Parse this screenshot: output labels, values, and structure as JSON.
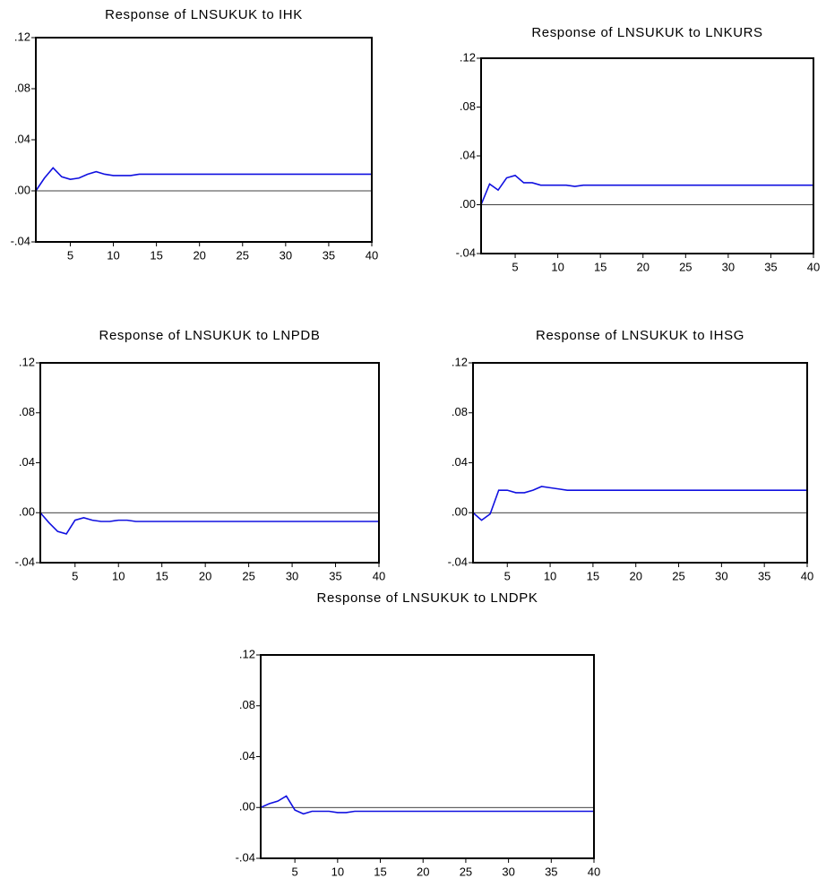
{
  "chart_data": [
    {
      "type": "line",
      "title": "Response of LNSUKUK to IHK",
      "color": "#1010e0",
      "zero_line": true,
      "x": [
        1,
        2,
        3,
        4,
        5,
        6,
        7,
        8,
        9,
        10,
        11,
        12,
        13,
        14,
        15,
        16,
        17,
        18,
        19,
        20,
        21,
        22,
        23,
        24,
        25,
        26,
        27,
        28,
        29,
        30,
        31,
        32,
        33,
        34,
        35,
        36,
        37,
        38,
        39,
        40
      ],
      "values": [
        0,
        0.01,
        0.018,
        0.011,
        0.009,
        0.01,
        0.013,
        0.015,
        0.013,
        0.012,
        0.012,
        0.012,
        0.013,
        0.013,
        0.013,
        0.013,
        0.013,
        0.013,
        0.013,
        0.013,
        0.013,
        0.013,
        0.013,
        0.013,
        0.013,
        0.013,
        0.013,
        0.013,
        0.013,
        0.013,
        0.013,
        0.013,
        0.013,
        0.013,
        0.013,
        0.013,
        0.013,
        0.013,
        0.013,
        0.013
      ],
      "xlim": [
        1,
        40
      ],
      "xticks": [
        5,
        10,
        15,
        20,
        25,
        30,
        35,
        40
      ],
      "ylim": [
        -0.04,
        0.12
      ],
      "yticks": [
        {
          "value": -0.04,
          "label": "-.04"
        },
        {
          "value": 0,
          "label": ".00"
        },
        {
          "value": 0.04,
          "label": ".04"
        },
        {
          "value": 0.08,
          "label": ".08"
        },
        {
          "value": 0.12,
          "label": ".12"
        }
      ]
    },
    {
      "type": "line",
      "title": "Response of LNSUKUK to LNKURS",
      "color": "#1010e0",
      "zero_line": true,
      "x": [
        1,
        2,
        3,
        4,
        5,
        6,
        7,
        8,
        9,
        10,
        11,
        12,
        13,
        14,
        15,
        16,
        17,
        18,
        19,
        20,
        21,
        22,
        23,
        24,
        25,
        26,
        27,
        28,
        29,
        30,
        31,
        32,
        33,
        34,
        35,
        36,
        37,
        38,
        39,
        40
      ],
      "values": [
        0,
        0.017,
        0.012,
        0.022,
        0.024,
        0.018,
        0.018,
        0.016,
        0.016,
        0.016,
        0.016,
        0.015,
        0.016,
        0.016,
        0.016,
        0.016,
        0.016,
        0.016,
        0.016,
        0.016,
        0.016,
        0.016,
        0.016,
        0.016,
        0.016,
        0.016,
        0.016,
        0.016,
        0.016,
        0.016,
        0.016,
        0.016,
        0.016,
        0.016,
        0.016,
        0.016,
        0.016,
        0.016,
        0.016,
        0.016
      ],
      "xlim": [
        1,
        40
      ],
      "xticks": [
        5,
        10,
        15,
        20,
        25,
        30,
        35,
        40
      ],
      "ylim": [
        -0.04,
        0.12
      ],
      "yticks": [
        {
          "value": -0.04,
          "label": "-.04"
        },
        {
          "value": 0,
          "label": ".00"
        },
        {
          "value": 0.04,
          "label": ".04"
        },
        {
          "value": 0.08,
          "label": ".08"
        },
        {
          "value": 0.12,
          "label": ".12"
        }
      ]
    },
    {
      "type": "line",
      "title": "Response of LNSUKUK to LNPDB",
      "color": "#1010e0",
      "zero_line": true,
      "x": [
        1,
        2,
        3,
        4,
        5,
        6,
        7,
        8,
        9,
        10,
        11,
        12,
        13,
        14,
        15,
        16,
        17,
        18,
        19,
        20,
        21,
        22,
        23,
        24,
        25,
        26,
        27,
        28,
        29,
        30,
        31,
        32,
        33,
        34,
        35,
        36,
        37,
        38,
        39,
        40
      ],
      "values": [
        0,
        -0.008,
        -0.015,
        -0.017,
        -0.006,
        -0.004,
        -0.006,
        -0.007,
        -0.007,
        -0.006,
        -0.006,
        -0.007,
        -0.007,
        -0.007,
        -0.007,
        -0.007,
        -0.007,
        -0.007,
        -0.007,
        -0.007,
        -0.007,
        -0.007,
        -0.007,
        -0.007,
        -0.007,
        -0.007,
        -0.007,
        -0.007,
        -0.007,
        -0.007,
        -0.007,
        -0.007,
        -0.007,
        -0.007,
        -0.007,
        -0.007,
        -0.007,
        -0.007,
        -0.007,
        -0.007
      ],
      "xlim": [
        1,
        40
      ],
      "xticks": [
        5,
        10,
        15,
        20,
        25,
        30,
        35,
        40
      ],
      "ylim": [
        -0.04,
        0.12
      ],
      "yticks": [
        {
          "value": -0.04,
          "label": "-.04"
        },
        {
          "value": 0,
          "label": ".00"
        },
        {
          "value": 0.04,
          "label": ".04"
        },
        {
          "value": 0.08,
          "label": ".08"
        },
        {
          "value": 0.12,
          "label": ".12"
        }
      ]
    },
    {
      "type": "line",
      "title": "Response of LNSUKUK to IHSG",
      "color": "#1010e0",
      "zero_line": true,
      "x": [
        1,
        2,
        3,
        4,
        5,
        6,
        7,
        8,
        9,
        10,
        11,
        12,
        13,
        14,
        15,
        16,
        17,
        18,
        19,
        20,
        21,
        22,
        23,
        24,
        25,
        26,
        27,
        28,
        29,
        30,
        31,
        32,
        33,
        34,
        35,
        36,
        37,
        38,
        39,
        40
      ],
      "values": [
        0,
        -0.006,
        -0.001,
        0.018,
        0.018,
        0.016,
        0.016,
        0.018,
        0.021,
        0.02,
        0.019,
        0.018,
        0.018,
        0.018,
        0.018,
        0.018,
        0.018,
        0.018,
        0.018,
        0.018,
        0.018,
        0.018,
        0.018,
        0.018,
        0.018,
        0.018,
        0.018,
        0.018,
        0.018,
        0.018,
        0.018,
        0.018,
        0.018,
        0.018,
        0.018,
        0.018,
        0.018,
        0.018,
        0.018,
        0.018
      ],
      "xlim": [
        1,
        40
      ],
      "xticks": [
        5,
        10,
        15,
        20,
        25,
        30,
        35,
        40
      ],
      "ylim": [
        -0.04,
        0.12
      ],
      "yticks": [
        {
          "value": -0.04,
          "label": "-.04"
        },
        {
          "value": 0,
          "label": ".00"
        },
        {
          "value": 0.04,
          "label": ".04"
        },
        {
          "value": 0.08,
          "label": ".08"
        },
        {
          "value": 0.12,
          "label": ".12"
        }
      ]
    },
    {
      "type": "line",
      "title": "Response of LNSUKUK to LNDPK",
      "color": "#1010e0",
      "zero_line": true,
      "x": [
        1,
        2,
        3,
        4,
        5,
        6,
        7,
        8,
        9,
        10,
        11,
        12,
        13,
        14,
        15,
        16,
        17,
        18,
        19,
        20,
        21,
        22,
        23,
        24,
        25,
        26,
        27,
        28,
        29,
        30,
        31,
        32,
        33,
        34,
        35,
        36,
        37,
        38,
        39,
        40
      ],
      "values": [
        0,
        0.003,
        0.005,
        0.009,
        -0.002,
        -0.005,
        -0.003,
        -0.003,
        -0.003,
        -0.004,
        -0.004,
        -0.003,
        -0.003,
        -0.003,
        -0.003,
        -0.003,
        -0.003,
        -0.003,
        -0.003,
        -0.003,
        -0.003,
        -0.003,
        -0.003,
        -0.003,
        -0.003,
        -0.003,
        -0.003,
        -0.003,
        -0.003,
        -0.003,
        -0.003,
        -0.003,
        -0.003,
        -0.003,
        -0.003,
        -0.003,
        -0.003,
        -0.003,
        -0.003,
        -0.003
      ],
      "xlim": [
        1,
        40
      ],
      "xticks": [
        5,
        10,
        15,
        20,
        25,
        30,
        35,
        40
      ],
      "ylim": [
        -0.04,
        0.12
      ],
      "yticks": [
        {
          "value": -0.04,
          "label": "-.04"
        },
        {
          "value": 0,
          "label": ".00"
        },
        {
          "value": 0.04,
          "label": ".04"
        },
        {
          "value": 0.08,
          "label": ".08"
        },
        {
          "value": 0.12,
          "label": ".12"
        }
      ]
    }
  ]
}
